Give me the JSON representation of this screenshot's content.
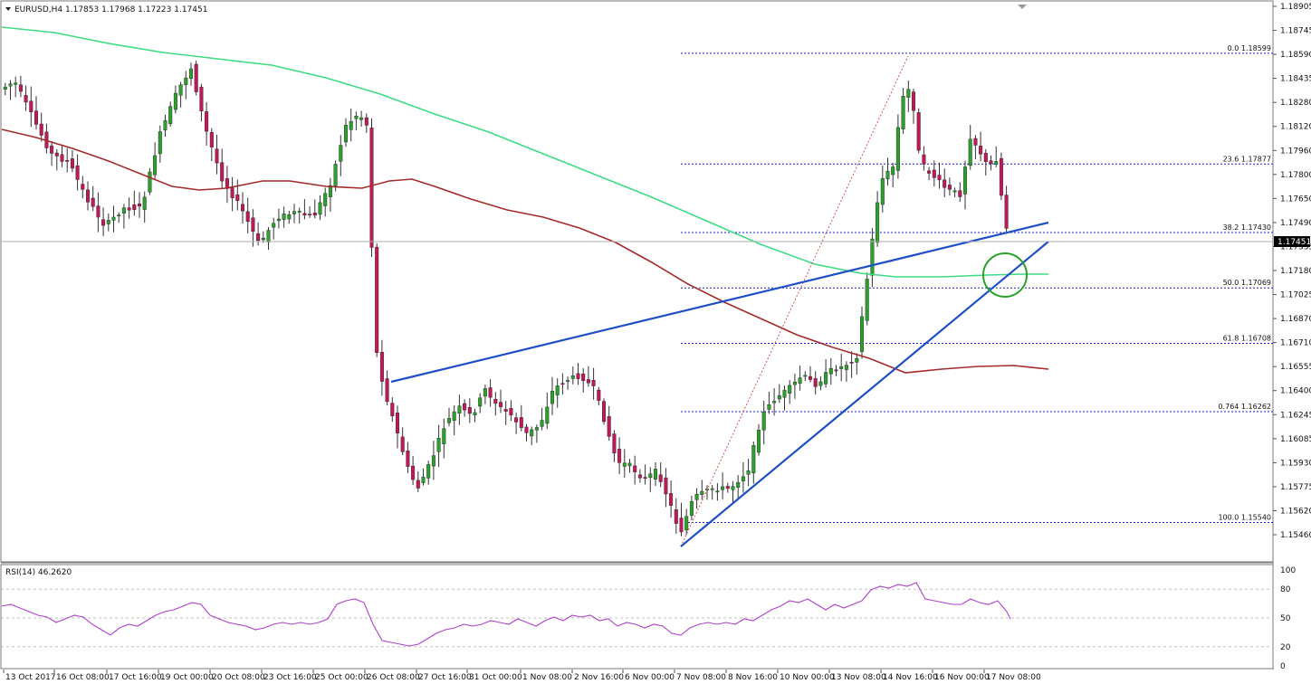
{
  "chart_data": {
    "type": "candlestick",
    "symbol": "EURUSD,H4",
    "ohlc_header": "1.17853 1.17968 1.17223 1.17451",
    "price_axis": {
      "ticks": [
        "1.18905",
        "1.18745",
        "1.18590",
        "1.18435",
        "1.18280",
        "1.18120",
        "1.17960",
        "1.17800",
        "1.17650",
        "1.17490",
        "1.17335",
        "1.17180",
        "1.17025",
        "1.16870",
        "1.16710",
        "1.16555",
        "1.16400",
        "1.16245",
        "1.16085",
        "1.15930",
        "1.15775",
        "1.15620",
        "1.15460"
      ],
      "current": "1.17451",
      "ylim": [
        1.1545,
        1.1895
      ]
    },
    "time_axis": {
      "labels": [
        "13 Oct 2017",
        "16 Oct 08:00",
        "17 Oct 16:00",
        "19 Oct 00:00",
        "20 Oct 08:00",
        "23 Oct 16:00",
        "25 Oct 00:00",
        "26 Oct 08:00",
        "27 Oct 16:00",
        "31 Oct 00:00",
        "1 Nov 08:00",
        "2 Nov 16:00",
        "6 Nov 00:00",
        "7 Nov 08:00",
        "8 Nov 16:00",
        "10 Nov 00:00",
        "13 Nov 08:00",
        "14 Nov 16:00",
        "16 Nov 00:00",
        "17 Nov 08:00"
      ]
    },
    "fibonacci": [
      {
        "label": "0.0 1.18599",
        "value": 1.18599
      },
      {
        "label": "23.6 1.17877",
        "value": 1.17877
      },
      {
        "label": "38.2 1.17430",
        "value": 1.1743
      },
      {
        "label": "50.0 1.17069",
        "value": 1.17069
      },
      {
        "label": "61.8 1.16708",
        "value": 1.16708
      },
      {
        "label": "0.764 1.16262",
        "value": 1.16262
      },
      {
        "label": "100.0 1.15540",
        "value": 1.1554
      }
    ],
    "rsi": {
      "label": "RSI(14) 46.2620",
      "levels": [
        "100",
        "80",
        "50",
        "20",
        "0"
      ],
      "ylim": [
        0,
        100
      ]
    },
    "colors": {
      "bull": "#2ca02c",
      "bear": "#c2185b",
      "wick": "#333333",
      "ma_fast": "#a52a2a",
      "ma_slow": "#3ddc84",
      "trendline": "#1f4fc7",
      "fib": "#1f1fc7",
      "fib_swing": "#e05050",
      "rsi": "#b040d0",
      "circle": "#2aa02a",
      "grid": "#c0c0c0"
    }
  }
}
